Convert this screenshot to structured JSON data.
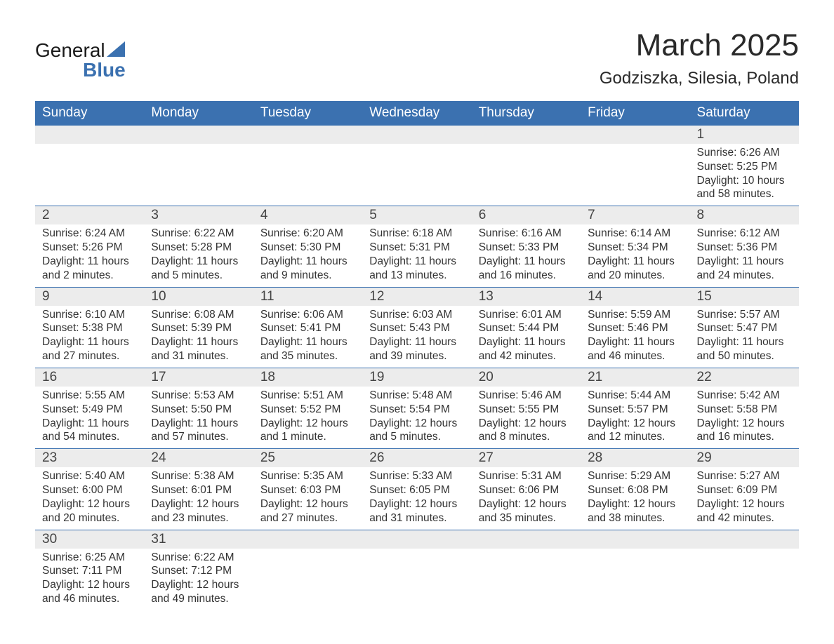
{
  "brand": {
    "word1": "General",
    "word2": "Blue",
    "accent_color": "#3b71b0"
  },
  "header": {
    "month_year": "March 2025",
    "location": "Godziszka, Silesia, Poland"
  },
  "colors": {
    "header_bg": "#3b71b0",
    "header_fg": "#ffffff",
    "daynum_bg": "#ececec",
    "text": "#333333",
    "row_divider": "#3b71b0",
    "page_bg": "#ffffff"
  },
  "weekdays": [
    "Sunday",
    "Monday",
    "Tuesday",
    "Wednesday",
    "Thursday",
    "Friday",
    "Saturday"
  ],
  "weeks": [
    [
      null,
      null,
      null,
      null,
      null,
      null,
      {
        "n": "1",
        "sr": "6:26 AM",
        "ss": "5:25 PM",
        "dl": "10 hours and 58 minutes."
      }
    ],
    [
      {
        "n": "2",
        "sr": "6:24 AM",
        "ss": "5:26 PM",
        "dl": "11 hours and 2 minutes."
      },
      {
        "n": "3",
        "sr": "6:22 AM",
        "ss": "5:28 PM",
        "dl": "11 hours and 5 minutes."
      },
      {
        "n": "4",
        "sr": "6:20 AM",
        "ss": "5:30 PM",
        "dl": "11 hours and 9 minutes."
      },
      {
        "n": "5",
        "sr": "6:18 AM",
        "ss": "5:31 PM",
        "dl": "11 hours and 13 minutes."
      },
      {
        "n": "6",
        "sr": "6:16 AM",
        "ss": "5:33 PM",
        "dl": "11 hours and 16 minutes."
      },
      {
        "n": "7",
        "sr": "6:14 AM",
        "ss": "5:34 PM",
        "dl": "11 hours and 20 minutes."
      },
      {
        "n": "8",
        "sr": "6:12 AM",
        "ss": "5:36 PM",
        "dl": "11 hours and 24 minutes."
      }
    ],
    [
      {
        "n": "9",
        "sr": "6:10 AM",
        "ss": "5:38 PM",
        "dl": "11 hours and 27 minutes."
      },
      {
        "n": "10",
        "sr": "6:08 AM",
        "ss": "5:39 PM",
        "dl": "11 hours and 31 minutes."
      },
      {
        "n": "11",
        "sr": "6:06 AM",
        "ss": "5:41 PM",
        "dl": "11 hours and 35 minutes."
      },
      {
        "n": "12",
        "sr": "6:03 AM",
        "ss": "5:43 PM",
        "dl": "11 hours and 39 minutes."
      },
      {
        "n": "13",
        "sr": "6:01 AM",
        "ss": "5:44 PM",
        "dl": "11 hours and 42 minutes."
      },
      {
        "n": "14",
        "sr": "5:59 AM",
        "ss": "5:46 PM",
        "dl": "11 hours and 46 minutes."
      },
      {
        "n": "15",
        "sr": "5:57 AM",
        "ss": "5:47 PM",
        "dl": "11 hours and 50 minutes."
      }
    ],
    [
      {
        "n": "16",
        "sr": "5:55 AM",
        "ss": "5:49 PM",
        "dl": "11 hours and 54 minutes."
      },
      {
        "n": "17",
        "sr": "5:53 AM",
        "ss": "5:50 PM",
        "dl": "11 hours and 57 minutes."
      },
      {
        "n": "18",
        "sr": "5:51 AM",
        "ss": "5:52 PM",
        "dl": "12 hours and 1 minute."
      },
      {
        "n": "19",
        "sr": "5:48 AM",
        "ss": "5:54 PM",
        "dl": "12 hours and 5 minutes."
      },
      {
        "n": "20",
        "sr": "5:46 AM",
        "ss": "5:55 PM",
        "dl": "12 hours and 8 minutes."
      },
      {
        "n": "21",
        "sr": "5:44 AM",
        "ss": "5:57 PM",
        "dl": "12 hours and 12 minutes."
      },
      {
        "n": "22",
        "sr": "5:42 AM",
        "ss": "5:58 PM",
        "dl": "12 hours and 16 minutes."
      }
    ],
    [
      {
        "n": "23",
        "sr": "5:40 AM",
        "ss": "6:00 PM",
        "dl": "12 hours and 20 minutes."
      },
      {
        "n": "24",
        "sr": "5:38 AM",
        "ss": "6:01 PM",
        "dl": "12 hours and 23 minutes."
      },
      {
        "n": "25",
        "sr": "5:35 AM",
        "ss": "6:03 PM",
        "dl": "12 hours and 27 minutes."
      },
      {
        "n": "26",
        "sr": "5:33 AM",
        "ss": "6:05 PM",
        "dl": "12 hours and 31 minutes."
      },
      {
        "n": "27",
        "sr": "5:31 AM",
        "ss": "6:06 PM",
        "dl": "12 hours and 35 minutes."
      },
      {
        "n": "28",
        "sr": "5:29 AM",
        "ss": "6:08 PM",
        "dl": "12 hours and 38 minutes."
      },
      {
        "n": "29",
        "sr": "5:27 AM",
        "ss": "6:09 PM",
        "dl": "12 hours and 42 minutes."
      }
    ],
    [
      {
        "n": "30",
        "sr": "6:25 AM",
        "ss": "7:11 PM",
        "dl": "12 hours and 46 minutes."
      },
      {
        "n": "31",
        "sr": "6:22 AM",
        "ss": "7:12 PM",
        "dl": "12 hours and 49 minutes."
      },
      null,
      null,
      null,
      null,
      null
    ]
  ],
  "labels": {
    "sunrise": "Sunrise:",
    "sunset": "Sunset:",
    "daylight": "Daylight:"
  }
}
